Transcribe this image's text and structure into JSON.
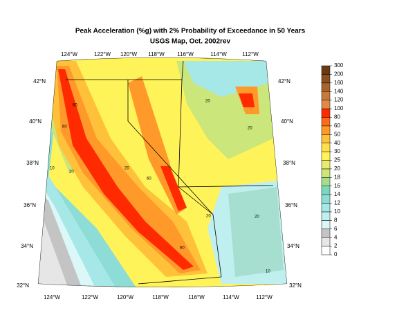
{
  "title": "Peak Acceleration (%g) with 2% Probability of Exceedance in 50 Years",
  "subtitle": "USGS Map, Oct. 2002rev",
  "longitude_labels_top": [
    "124°W",
    "122°W",
    "120°W",
    "118°W",
    "116°W",
    "114°W",
    "112°W"
  ],
  "longitude_labels_bottom": [
    "124°W",
    "122°W",
    "120°W",
    "118°W",
    "116°W",
    "114°W",
    "112°W"
  ],
  "latitude_labels_left": [
    "42°N",
    "40°N",
    "38°N",
    "36°N",
    "34°N",
    "32°N"
  ],
  "latitude_labels_right": [
    "42°N",
    "40°N",
    "38°N",
    "36°N",
    "34°N",
    "32°N"
  ],
  "colorbar": {
    "levels": [
      0,
      2,
      4,
      6,
      8,
      10,
      12,
      14,
      16,
      18,
      20,
      25,
      30,
      40,
      50,
      60,
      80,
      100,
      120,
      140,
      160,
      200,
      300
    ],
    "colors": [
      "#ffffff",
      "#e6e6e6",
      "#c4c4c4",
      "#dcf7f7",
      "#c0efef",
      "#a6e7e7",
      "#8edcd6",
      "#7cd6bc",
      "#a6df8c",
      "#cbe67a",
      "#e8ec6a",
      "#fff35a",
      "#ffe04a",
      "#ffc13a",
      "#ff9a2a",
      "#ff6a1a",
      "#ff2a00",
      "#e08a4a",
      "#c87a3a",
      "#a8652a",
      "#8a5020",
      "#6a3a15"
    ]
  },
  "contour_labels": [
    "60",
    "60",
    "20",
    "10",
    "20",
    "60",
    "20",
    "20",
    "20",
    "10",
    "60",
    "20"
  ]
}
